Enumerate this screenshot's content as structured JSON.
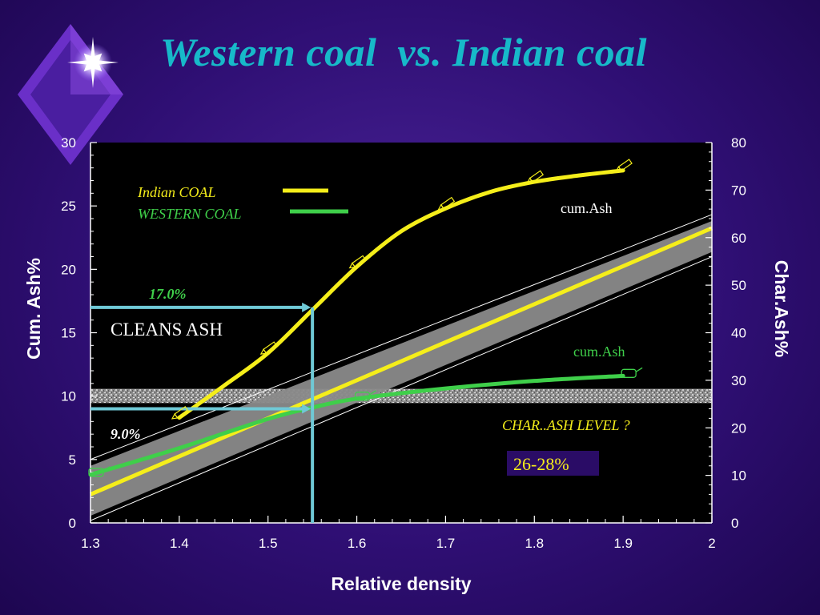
{
  "title": "Western coal  vs. Indian coal",
  "colors": {
    "background": "#2f0f74",
    "title": "#17b9c9",
    "indian": "#f5ee1a",
    "western": "#3fcf4a",
    "guide": "#6fc9d6",
    "plot_bg": "#000000",
    "level_box": "#2a0c66"
  },
  "chart_data": {
    "type": "line",
    "xlabel": "Relative density",
    "ylabel_left": "Cum. Ash%",
    "ylabel_right": "Char.Ash%",
    "xlim": [
      1.3,
      2.0
    ],
    "ylim_left": [
      0,
      30
    ],
    "ylim_right": [
      0,
      80
    ],
    "x_ticks": [
      "1.3",
      "1.4",
      "1.5",
      "1.6",
      "1.7",
      "1.8",
      "1.9",
      "2"
    ],
    "y_left_ticks": [
      "0",
      "5",
      "10",
      "15",
      "20",
      "25",
      "30"
    ],
    "y_right_ticks": [
      "0",
      "10",
      "20",
      "30",
      "40",
      "50",
      "60",
      "70",
      "80"
    ],
    "grid": false,
    "legend_position": "top-left",
    "series": [
      {
        "name": "Indian  COAL",
        "axis": "left",
        "label": "cum.Ash",
        "x": [
          1.4,
          1.45,
          1.5,
          1.55,
          1.6,
          1.65,
          1.7,
          1.75,
          1.8,
          1.85,
          1.9
        ],
        "y": [
          8.3,
          10.8,
          13.4,
          16.8,
          20.2,
          23.0,
          24.8,
          26.1,
          26.9,
          27.4,
          27.8
        ]
      },
      {
        "name": "WESTERN COAL",
        "axis": "left",
        "label": "cum.Ash",
        "x": [
          1.3,
          1.4,
          1.5,
          1.55,
          1.6,
          1.7,
          1.8,
          1.9
        ],
        "y": [
          3.8,
          5.9,
          8.2,
          9.1,
          9.8,
          10.6,
          11.2,
          11.6
        ]
      },
      {
        "name": "Char.Ash",
        "axis": "right",
        "style": "band",
        "x": [
          1.3,
          2.0
        ],
        "y": [
          6.0,
          62.0
        ],
        "y_low": [
          1.5,
          57.0
        ],
        "y_high": [
          12.0,
          63.5
        ]
      }
    ],
    "level_band": {
      "axis": "right",
      "y_low": 25.2,
      "y_high": 28.2
    },
    "guides": [
      {
        "x": 1.55,
        "y": 17.0,
        "label": "17.0%"
      },
      {
        "x": 1.55,
        "y": 9.0,
        "label": "9.0%"
      }
    ],
    "annotations": {
      "cleans_ash": "CLEANS ASH",
      "char_ash_level": "CHAR..ASH  LEVEL ?",
      "level_value": "26-28%",
      "indian_label": "cum.Ash",
      "western_label": "cum.Ash"
    }
  }
}
